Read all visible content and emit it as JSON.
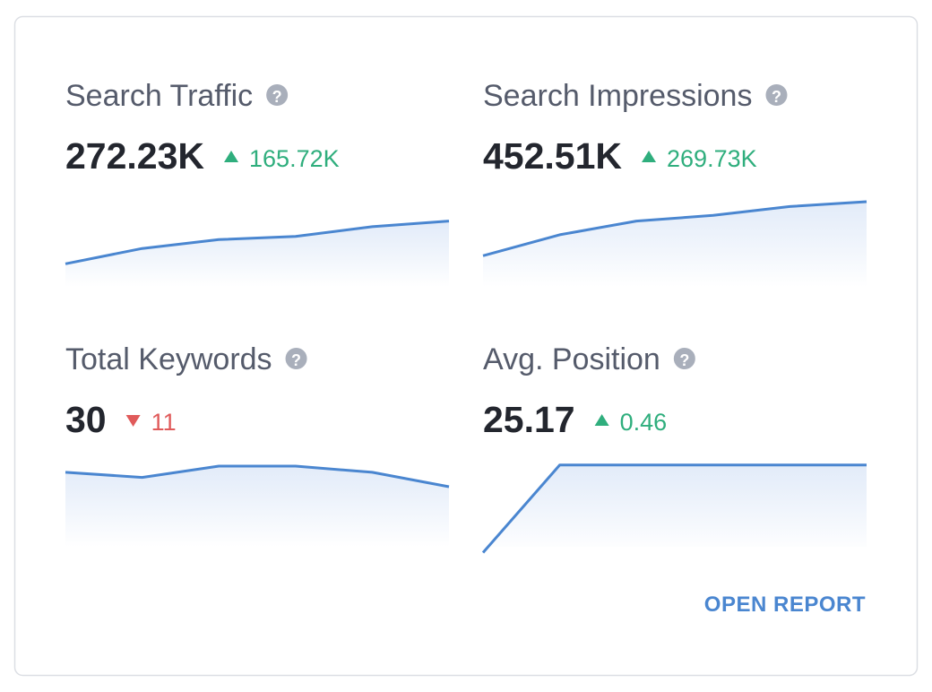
{
  "metrics": [
    {
      "title": "Search Traffic",
      "value": "272.23K",
      "change": "165.72K",
      "direction": "up",
      "sparkline": {
        "values": [
          23,
          42,
          53,
          57,
          69,
          76
        ],
        "ylim": [
          0,
          100
        ]
      }
    },
    {
      "title": "Search Impressions",
      "value": "452.51K",
      "change": "269.73K",
      "direction": "up",
      "sparkline": {
        "values": [
          33,
          59,
          76,
          83,
          94,
          100
        ],
        "ylim": [
          0,
          100
        ]
      }
    },
    {
      "title": "Total Keywords",
      "value": "30",
      "change": "11",
      "direction": "down",
      "sparkline": {
        "values": [
          81,
          76,
          87,
          87,
          81,
          67
        ],
        "ylim": [
          0,
          100
        ]
      }
    },
    {
      "title": "Avg. Position",
      "value": "25.17",
      "change": "0.46",
      "direction": "up",
      "sparkline": {
        "values": [
          3,
          88,
          88,
          88,
          88,
          88
        ],
        "ylim": [
          0,
          100
        ]
      }
    }
  ],
  "link": "OPEN REPORT"
}
